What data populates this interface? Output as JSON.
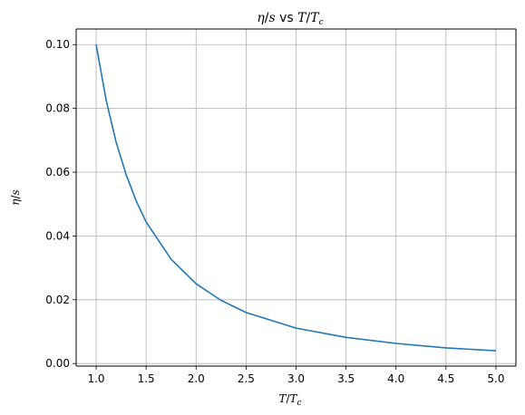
{
  "chart_data": {
    "type": "line",
    "title": {
      "eta": "η",
      "slash": "/",
      "s": "s",
      "vs": " vs ",
      "T": "T",
      "slash2": "/",
      "Tc_T": "T",
      "Tc_sub": "c"
    },
    "xlabel": {
      "T": "T",
      "slash": "/",
      "Tc_T": "T",
      "Tc_sub": "c"
    },
    "ylabel": {
      "eta": "η",
      "slash": "/",
      "s": "s"
    },
    "xlim": [
      0.8,
      5.2
    ],
    "ylim": [
      -0.0008,
      0.1049
    ],
    "x_ticks": [
      1.0,
      1.5,
      2.0,
      2.5,
      3.0,
      3.5,
      4.0,
      4.5,
      5.0
    ],
    "x_tick_labels": [
      "1.0",
      "1.5",
      "2.0",
      "2.5",
      "3.0",
      "3.5",
      "4.0",
      "4.5",
      "5.0"
    ],
    "y_ticks": [
      0.0,
      0.02,
      0.04,
      0.06,
      0.08,
      0.1
    ],
    "y_tick_labels": [
      "0.00",
      "0.02",
      "0.04",
      "0.06",
      "0.08",
      "0.10"
    ],
    "grid": true,
    "series": [
      {
        "color": "#1f77b4",
        "x": [
          1.0,
          1.1,
          1.2,
          1.3,
          1.4,
          1.5,
          1.75,
          2.0,
          2.25,
          2.5,
          3.0,
          3.5,
          4.0,
          4.5,
          5.0
        ],
        "y": [
          0.1,
          0.0826,
          0.0694,
          0.0592,
          0.051,
          0.0444,
          0.0327,
          0.025,
          0.0198,
          0.016,
          0.0111,
          0.0082,
          0.0063,
          0.0049,
          0.004
        ]
      }
    ]
  }
}
